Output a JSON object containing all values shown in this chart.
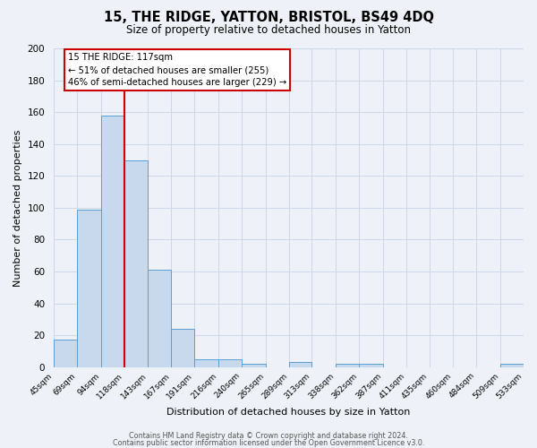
{
  "title": "15, THE RIDGE, YATTON, BRISTOL, BS49 4DQ",
  "subtitle": "Size of property relative to detached houses in Yatton",
  "xlabel": "Distribution of detached houses by size in Yatton",
  "ylabel": "Number of detached properties",
  "bar_edges": [
    45,
    69,
    94,
    118,
    143,
    167,
    191,
    216,
    240,
    265,
    289,
    313,
    338,
    362,
    387,
    411,
    435,
    460,
    484,
    509,
    533
  ],
  "bar_heights": [
    17,
    99,
    158,
    130,
    61,
    24,
    5,
    5,
    2,
    0,
    3,
    0,
    2,
    2,
    0,
    0,
    0,
    0,
    0,
    2
  ],
  "bar_color": "#c8d9ee",
  "bar_edge_color": "#5a9fd4",
  "vline_x": 118,
  "vline_color": "#cc0000",
  "ylim": [
    0,
    200
  ],
  "yticks": [
    0,
    20,
    40,
    60,
    80,
    100,
    120,
    140,
    160,
    180,
    200
  ],
  "tick_labels": [
    "45sqm",
    "69sqm",
    "94sqm",
    "118sqm",
    "143sqm",
    "167sqm",
    "191sqm",
    "216sqm",
    "240sqm",
    "265sqm",
    "289sqm",
    "313sqm",
    "338sqm",
    "362sqm",
    "387sqm",
    "411sqm",
    "435sqm",
    "460sqm",
    "484sqm",
    "509sqm",
    "533sqm"
  ],
  "annotation_line1": "15 THE RIDGE: 117sqm",
  "annotation_line2": "← 51% of detached houses are smaller (255)",
  "annotation_line3": "46% of semi-detached houses are larger (229) →",
  "footer1": "Contains HM Land Registry data © Crown copyright and database right 2024.",
  "footer2": "Contains public sector information licensed under the Open Government Licence v3.0.",
  "bg_color": "#eef2f8",
  "grid_color": "#d0d8e8",
  "fig_width": 6.0,
  "fig_height": 5.0,
  "dpi": 100
}
